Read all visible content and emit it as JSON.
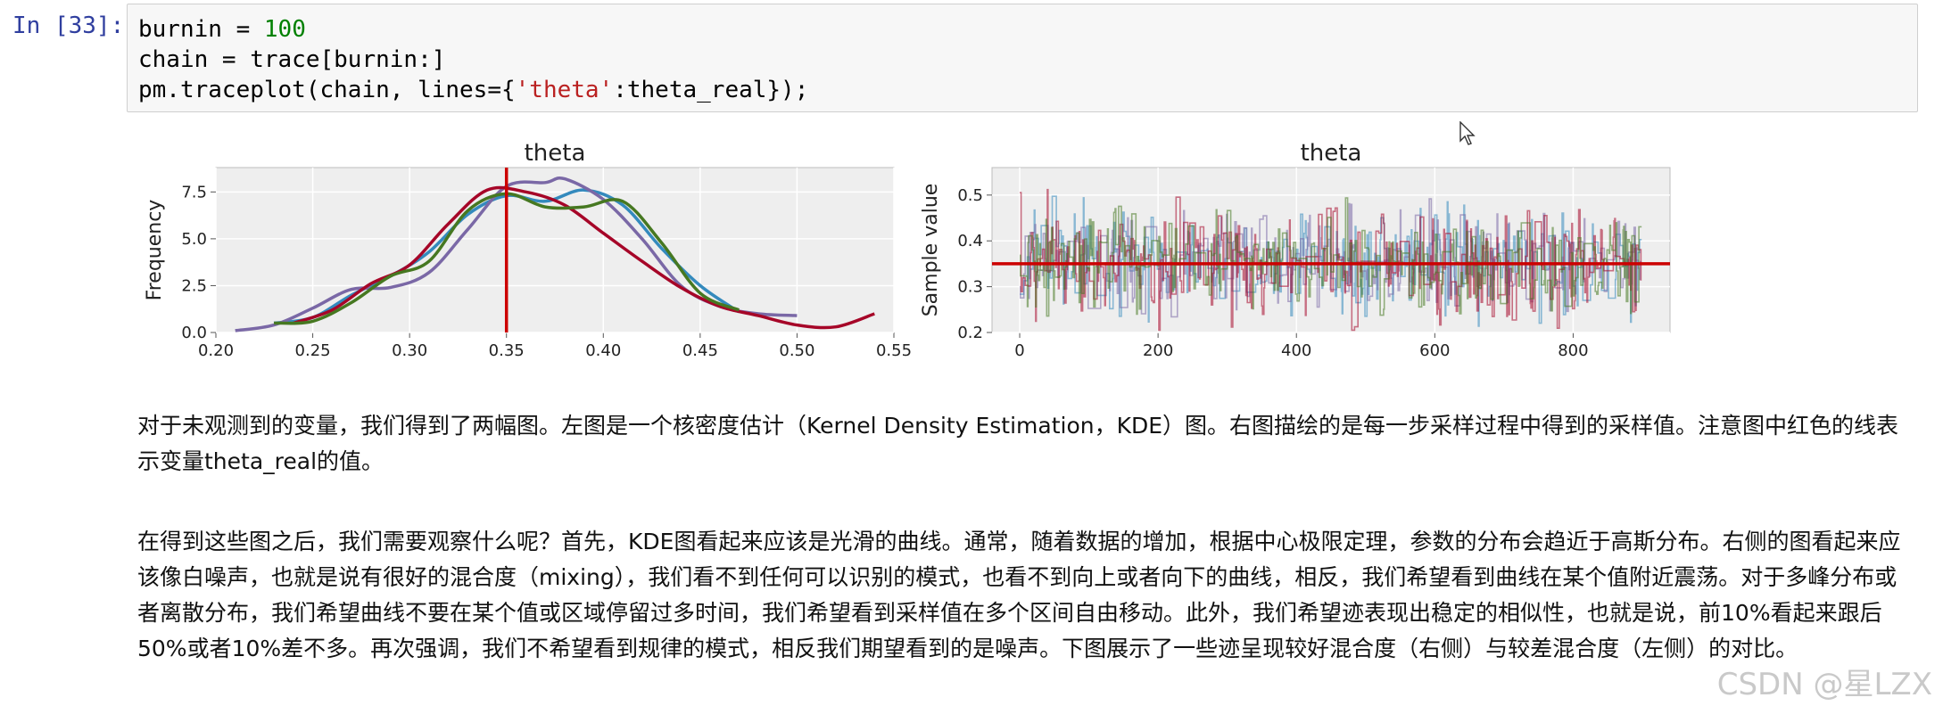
{
  "cell": {
    "prompt": "In [33]:",
    "line1_a": "burnin = ",
    "line1_num": "100",
    "line2": "chain = trace[burnin:]",
    "line3_a": "pm.traceplot(chain, lines={",
    "line3_str": "'theta'",
    "line3_b": ":theta_real});"
  },
  "chart_data": [
    {
      "type": "line",
      "title": "theta",
      "xlabel": "",
      "ylabel": "Frequency",
      "xlim": [
        0.2,
        0.55
      ],
      "ylim": [
        0,
        8.8
      ],
      "xticks": [
        "0.20",
        "0.25",
        "0.30",
        "0.35",
        "0.40",
        "0.45",
        "0.50",
        "0.55"
      ],
      "yticks": [
        "0.0",
        "2.5",
        "5.0",
        "7.5"
      ],
      "vline": 0.35,
      "grid": true,
      "series": [
        {
          "color": "#348abd",
          "x": [
            0.23,
            0.25,
            0.27,
            0.29,
            0.31,
            0.33,
            0.35,
            0.37,
            0.39,
            0.41,
            0.43,
            0.45,
            0.47
          ],
          "y": [
            0.5,
            0.8,
            2.0,
            3.0,
            4.3,
            6.3,
            7.3,
            7.0,
            7.6,
            6.8,
            4.5,
            2.5,
            1.1
          ]
        },
        {
          "color": "#7a68a6",
          "x": [
            0.21,
            0.23,
            0.25,
            0.27,
            0.29,
            0.31,
            0.33,
            0.35,
            0.37,
            0.38,
            0.4,
            0.42,
            0.44,
            0.46,
            0.48,
            0.5
          ],
          "y": [
            0.1,
            0.4,
            1.3,
            2.3,
            2.4,
            3.2,
            5.5,
            7.8,
            8.0,
            8.2,
            7.1,
            5.0,
            2.5,
            1.4,
            1.0,
            0.9
          ]
        },
        {
          "color": "#a60628",
          "x": [
            0.24,
            0.26,
            0.28,
            0.3,
            0.32,
            0.34,
            0.36,
            0.38,
            0.4,
            0.42,
            0.44,
            0.46,
            0.48,
            0.5,
            0.52,
            0.54
          ],
          "y": [
            0.5,
            1.2,
            2.6,
            3.6,
            5.8,
            7.6,
            7.5,
            6.8,
            5.3,
            3.8,
            2.4,
            1.4,
            0.9,
            0.4,
            0.3,
            1.0
          ]
        },
        {
          "color": "#467821",
          "x": [
            0.23,
            0.25,
            0.27,
            0.29,
            0.31,
            0.33,
            0.35,
            0.37,
            0.39,
            0.41,
            0.43,
            0.45,
            0.47
          ],
          "y": [
            0.5,
            0.6,
            1.6,
            3.0,
            3.8,
            6.5,
            7.4,
            6.7,
            6.7,
            7.0,
            4.8,
            2.1,
            1.2
          ]
        }
      ]
    },
    {
      "type": "line",
      "title": "theta",
      "xlabel": "",
      "ylabel": "Sample value",
      "xlim": [
        -40,
        940
      ],
      "ylim": [
        0.2,
        0.56
      ],
      "xticks": [
        "0",
        "200",
        "400",
        "600",
        "800"
      ],
      "yticks": [
        "0.2",
        "0.3",
        "0.4",
        "0.5"
      ],
      "hline": 0.35,
      "grid": true,
      "n_samples": 900,
      "series": [
        {
          "color": "#348abd",
          "mean": 0.36,
          "sd": 0.055,
          "seed": 11
        },
        {
          "color": "#7a68a6",
          "mean": 0.36,
          "sd": 0.055,
          "seed": 23
        },
        {
          "color": "#a60628",
          "mean": 0.35,
          "sd": 0.06,
          "seed": 37
        },
        {
          "color": "#467821",
          "mean": 0.355,
          "sd": 0.05,
          "seed": 51
        }
      ]
    }
  ],
  "markdown": {
    "para1": "对于未观测到的变量，我们得到了两幅图。左图是一个核密度估计（Kernel Density Estimation，KDE）图。右图描绘的是每一步采样过程中得到的采样值。注意图中红色的线表示变量theta_real的值。",
    "para2": "在得到这些图之后，我们需要观察什么呢？首先，KDE图看起来应该是光滑的曲线。通常，随着数据的增加，根据中心极限定理，参数的分布会趋近于高斯分布。右侧的图看起来应该像白噪声，也就是说有很好的混合度（mixing），我们看不到任何可以识别的模式，也看不到向上或者向下的曲线，相反，我们希望看到曲线在某个值附近震荡。对于多峰分布或者离散分布，我们希望曲线不要在某个值或区域停留过多时间，我们希望看到采样值在多个区间自由移动。此外，我们希望迹表现出稳定的相似性，也就是说，前10%看起来跟后50%或者10%差不多。再次强调，我们不希望看到规律的模式，相反我们期望看到的是噪声。下图展示了一些迹呈现较好混合度（右侧）与较差混合度（左侧）的对比。"
  },
  "watermark": "CSDN @星LZX",
  "colors": {
    "vline": "#cc0000",
    "plot_bg": "#eeeeee",
    "grid": "#ffffff"
  }
}
